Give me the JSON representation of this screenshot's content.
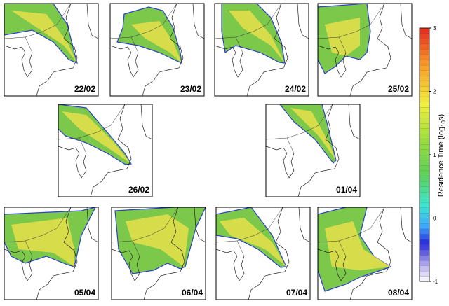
{
  "panels": [
    {
      "label": "22/02"
    },
    {
      "label": "23/02"
    },
    {
      "label": "24/02"
    },
    {
      "label": "25/02"
    },
    {
      "label": "26/02"
    },
    {
      "label": "01/04"
    },
    {
      "label": "05/04"
    },
    {
      "label": "06/04"
    },
    {
      "label": "07/04"
    },
    {
      "label": "08/04"
    }
  ],
  "colorbar": {
    "label": "Residence Time (log",
    "label_sub": "10",
    "label_end": "s)",
    "range": [
      -1,
      3
    ],
    "ticks": [
      -1,
      0,
      1,
      2,
      3
    ]
  }
}
